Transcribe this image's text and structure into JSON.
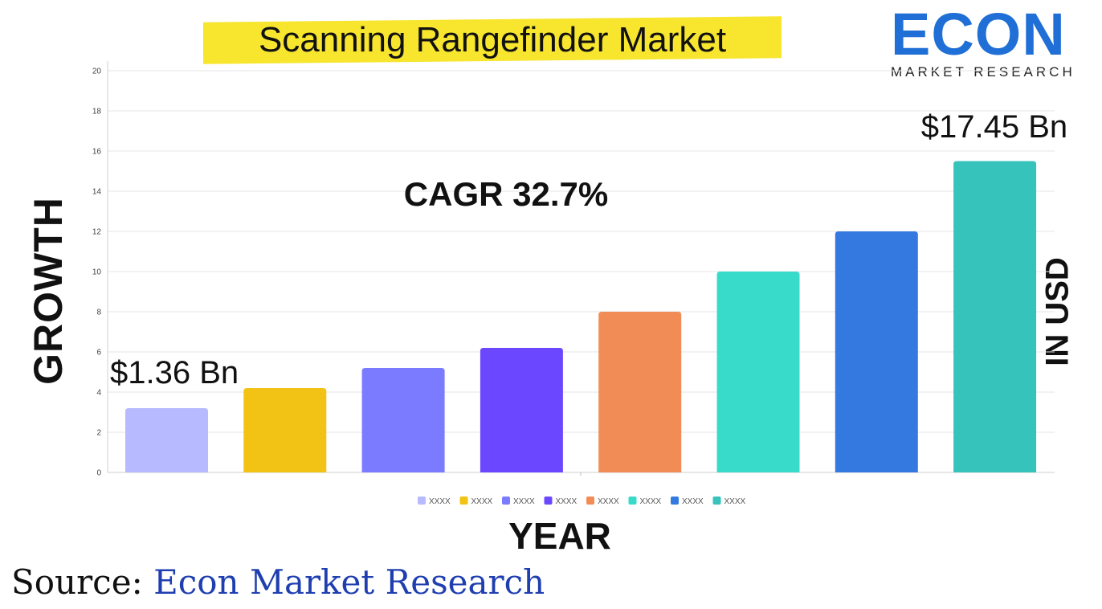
{
  "header": {
    "title": "Scanning Rangefinder Market"
  },
  "logo": {
    "word": "ECON",
    "subtitle": "MARKET RESEARCH",
    "color": "#1f6fd6",
    "accent": "#f5c518"
  },
  "axes": {
    "y_title": "GROWTH",
    "x_title": "YEAR",
    "unit_label": "IN USD"
  },
  "annotations": {
    "cagr": "CAGR 32.7%",
    "start_value": "$1.36 Bn",
    "end_value": "$17.45 Bn"
  },
  "footer": {
    "source_label": "Source:",
    "source_name": "Econ Market Research"
  },
  "chart_data": {
    "type": "bar",
    "categories": [
      "XXXX",
      "XXXX",
      "XXXX",
      "XXXX",
      "XXXX",
      "XXXX",
      "XXXX",
      "XXXX"
    ],
    "values": [
      3.2,
      4.2,
      5.2,
      6.2,
      8,
      10,
      12,
      15.5
    ],
    "colors": [
      "#b8baff",
      "#f2c314",
      "#7b7bff",
      "#6b47ff",
      "#f28c56",
      "#38dbc9",
      "#3379e0",
      "#36c3bb"
    ],
    "legend": [
      "XXXX",
      "XXXX",
      "XXXX",
      "XXXX",
      "XXXX",
      "XXXX",
      "XXXX",
      "XXXX"
    ],
    "legend_position": "bottom",
    "ylim": [
      0,
      20
    ],
    "yticks": [
      0,
      2,
      4,
      6,
      8,
      10,
      12,
      14,
      16,
      18,
      20
    ],
    "grid": true
  }
}
